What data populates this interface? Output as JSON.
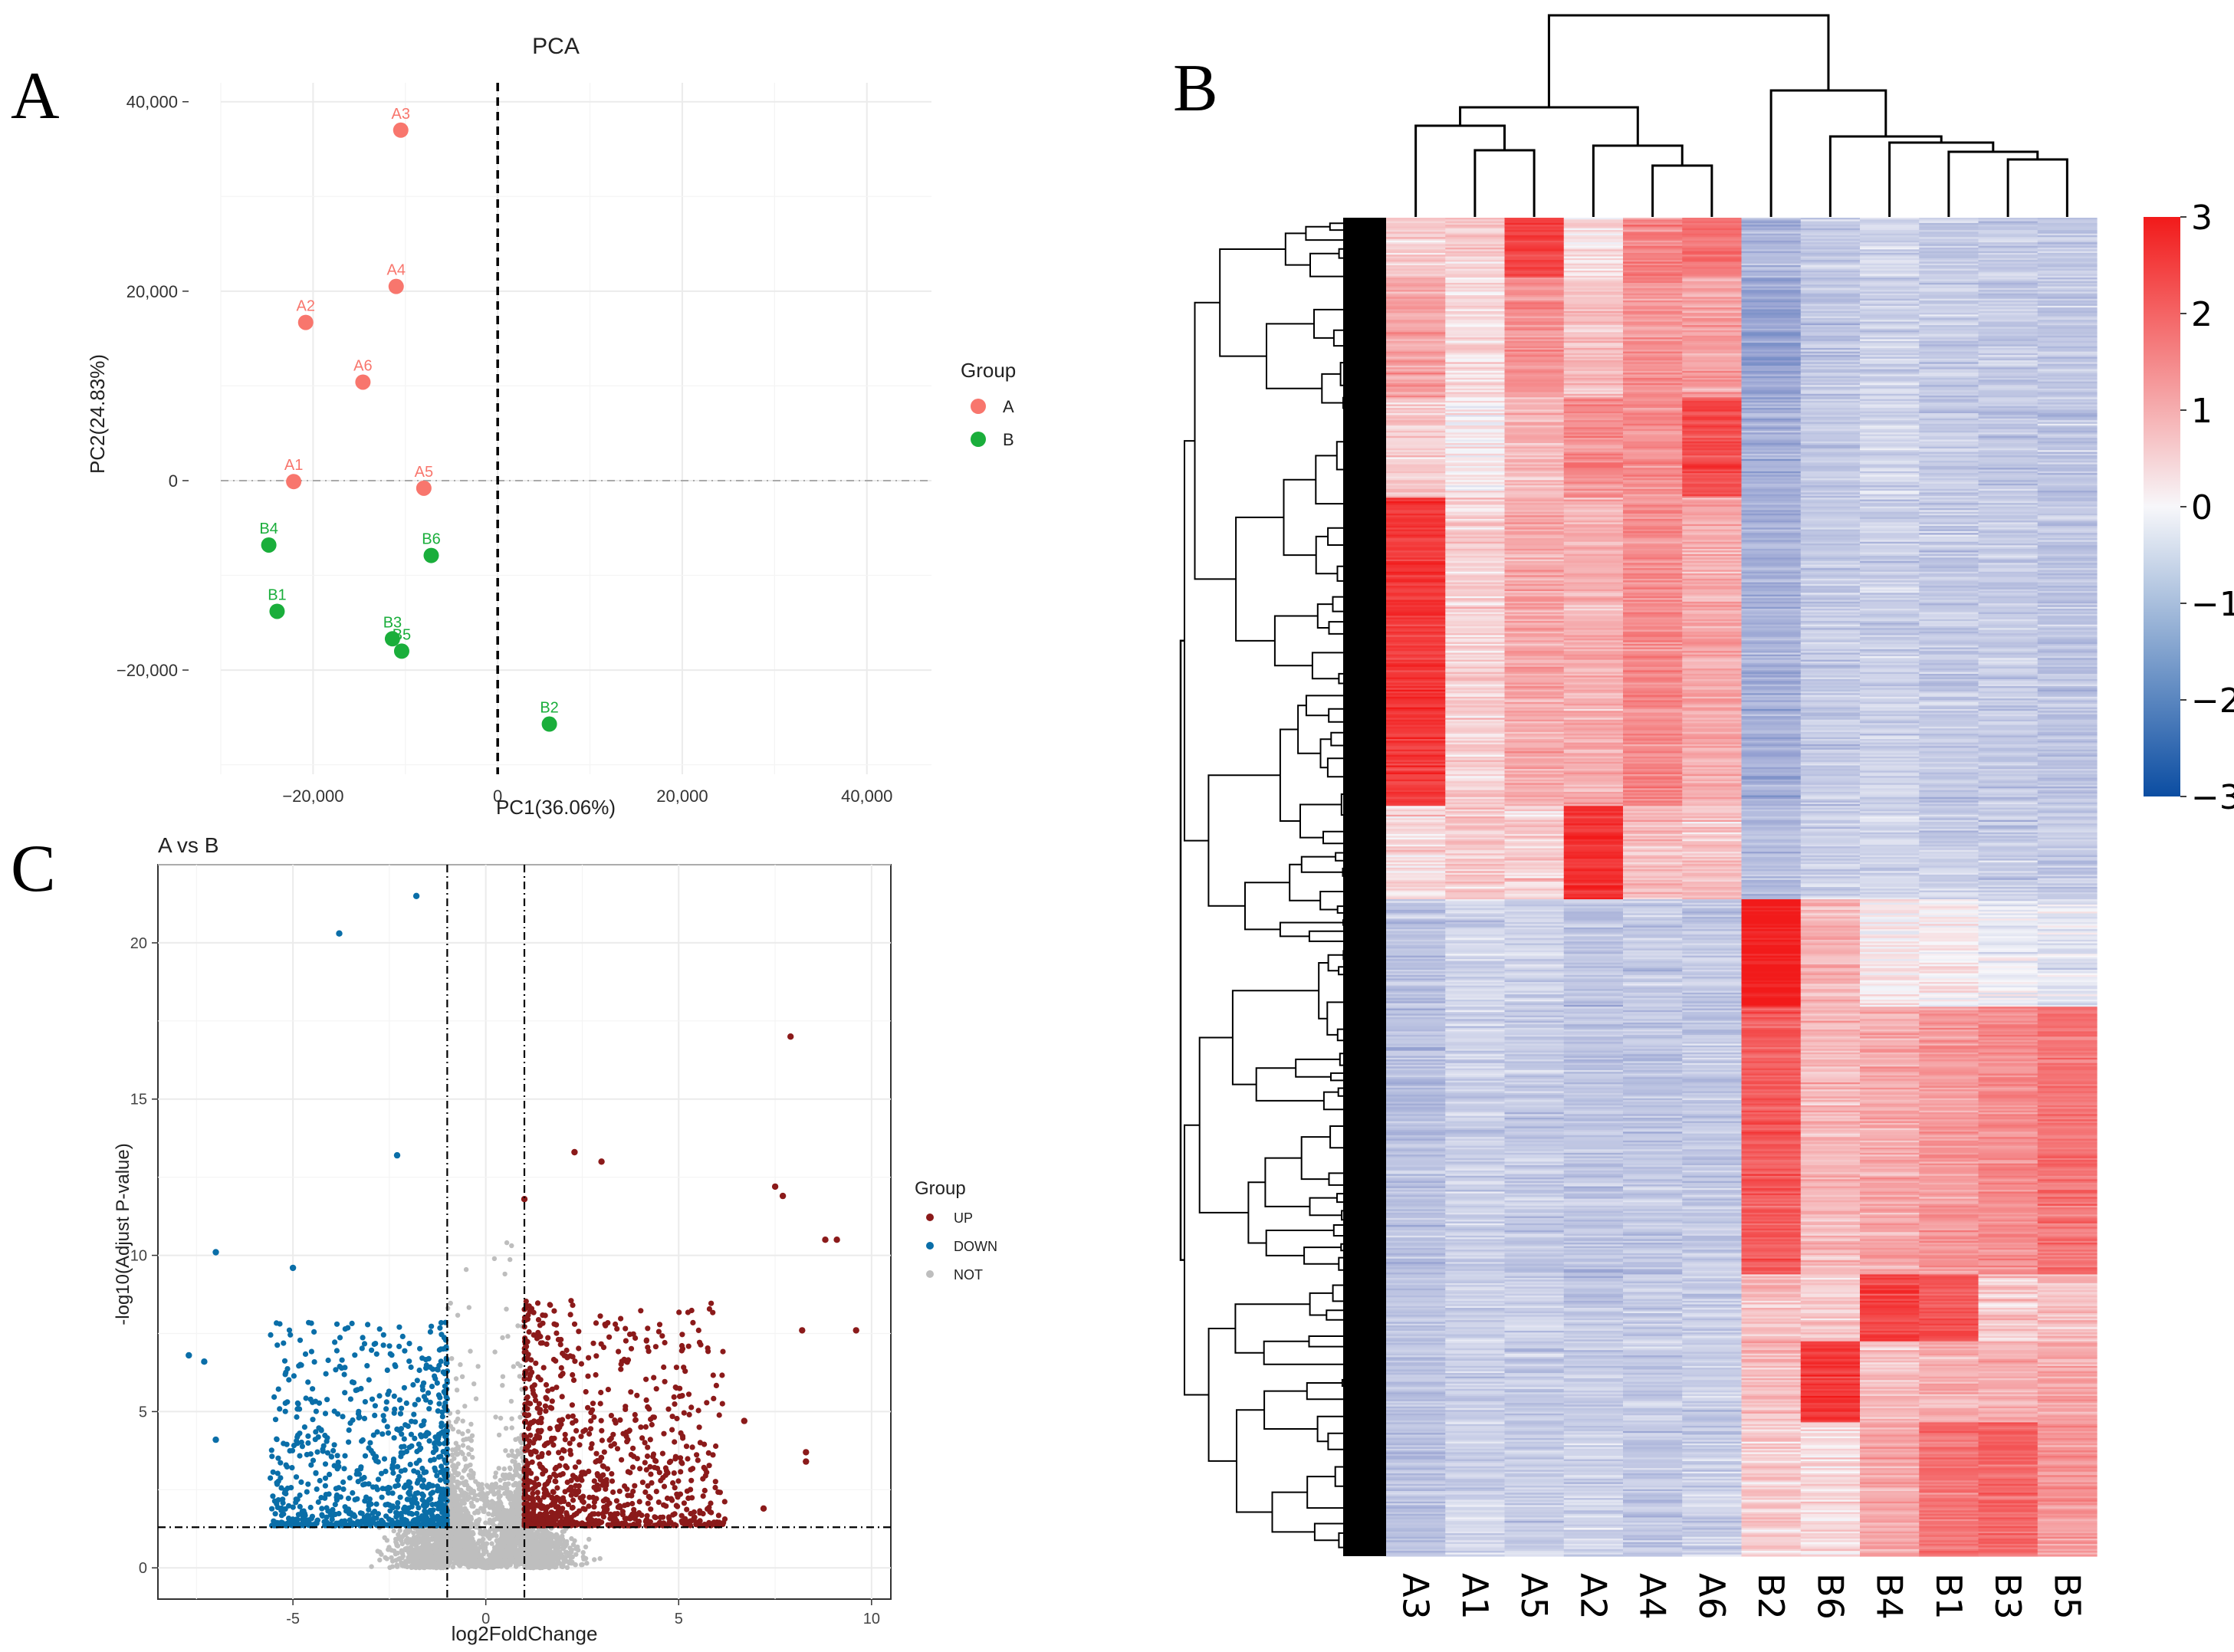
{
  "panels": {
    "a": "A",
    "b": "B",
    "c": "C"
  },
  "colors": {
    "group_a": "#F8766D",
    "group_b": "#1AAE3B",
    "up": "#8B1A1A",
    "down": "#0A6EA8",
    "not": "#BEBEBE",
    "heat_low": "#0B4DA2",
    "heat_mid": "#F7F7FA",
    "heat_high": "#F21A1A"
  },
  "chart_data": [
    {
      "id": "pca",
      "type": "scatter",
      "title": "PCA",
      "xlabel": "PC1(36.06%)",
      "ylabel": "PC2(24.83%)",
      "xlim": [
        -30000,
        47000
      ],
      "ylim": [
        -31000,
        42000
      ],
      "xticks": [
        -20000,
        0,
        20000,
        40000
      ],
      "xtick_labels": [
        "−20,000",
        "0",
        "20,000",
        "40,000"
      ],
      "yticks": [
        -20000,
        0,
        20000,
        40000
      ],
      "ytick_labels": [
        "−20,000",
        "0",
        "20,000",
        "40,000"
      ],
      "legend_title": "Group",
      "legend": [
        {
          "name": "A",
          "color": "#F8766D"
        },
        {
          "name": "B",
          "color": "#1AAE3B"
        }
      ],
      "points": [
        {
          "label": "A3",
          "group": "A",
          "x": -10500,
          "y": 37000
        },
        {
          "label": "A4",
          "group": "A",
          "x": -11000,
          "y": 20500
        },
        {
          "label": "A2",
          "group": "A",
          "x": -20800,
          "y": 16700
        },
        {
          "label": "A6",
          "group": "A",
          "x": -14600,
          "y": 10400
        },
        {
          "label": "A1",
          "group": "A",
          "x": -22100,
          "y": -100
        },
        {
          "label": "A5",
          "group": "A",
          "x": -8000,
          "y": -800
        },
        {
          "label": "B4",
          "group": "B",
          "x": -24800,
          "y": -6800
        },
        {
          "label": "B6",
          "group": "B",
          "x": -7200,
          "y": -7900
        },
        {
          "label": "B1",
          "group": "B",
          "x": -23900,
          "y": -13800
        },
        {
          "label": "B3",
          "group": "B",
          "x": -11400,
          "y": -16700
        },
        {
          "label": "B5",
          "group": "B",
          "x": -10400,
          "y": -18000
        },
        {
          "label": "B2",
          "group": "B",
          "x": 5600,
          "y": -25700
        }
      ]
    },
    {
      "id": "volcano",
      "type": "scatter",
      "title": "A vs B",
      "xlabel": "log2FoldChange",
      "ylabel": "-log10(Adjust P-value)",
      "xlim": [
        -8.5,
        10.5
      ],
      "ylim": [
        -1.0,
        22.5
      ],
      "xticks": [
        -5,
        0,
        5,
        10
      ],
      "yticks": [
        0,
        5,
        10,
        15,
        20
      ],
      "vlines": [
        -1,
        1
      ],
      "hline": 1.3,
      "legend_title": "Group",
      "legend": [
        {
          "name": "UP",
          "color": "#8B1A1A"
        },
        {
          "name": "DOWN",
          "color": "#0A6EA8"
        },
        {
          "name": "NOT",
          "color": "#BEBEBE"
        }
      ],
      "notable_points": [
        {
          "group": "DOWN",
          "x": -1.8,
          "y": 21.5
        },
        {
          "group": "DOWN",
          "x": -3.8,
          "y": 20.3
        },
        {
          "group": "DOWN",
          "x": -2.3,
          "y": 13.2
        },
        {
          "group": "DOWN",
          "x": -7.0,
          "y": 10.1
        },
        {
          "group": "DOWN",
          "x": -5.0,
          "y": 9.6
        },
        {
          "group": "DOWN",
          "x": -7.7,
          "y": 6.8
        },
        {
          "group": "DOWN",
          "x": -7.3,
          "y": 6.6
        },
        {
          "group": "DOWN",
          "x": -7.0,
          "y": 4.1
        },
        {
          "group": "UP",
          "x": 7.9,
          "y": 17.0
        },
        {
          "group": "UP",
          "x": 2.3,
          "y": 13.3
        },
        {
          "group": "UP",
          "x": 3.0,
          "y": 13.0
        },
        {
          "group": "UP",
          "x": 7.5,
          "y": 12.2
        },
        {
          "group": "UP",
          "x": 7.7,
          "y": 11.9
        },
        {
          "group": "UP",
          "x": 1.0,
          "y": 11.8
        },
        {
          "group": "UP",
          "x": 8.8,
          "y": 10.5
        },
        {
          "group": "UP",
          "x": 9.1,
          "y": 10.5
        },
        {
          "group": "UP",
          "x": 9.6,
          "y": 7.6
        },
        {
          "group": "UP",
          "x": 8.2,
          "y": 7.6
        },
        {
          "group": "UP",
          "x": 8.3,
          "y": 3.7
        },
        {
          "group": "UP",
          "x": 8.3,
          "y": 3.4
        },
        {
          "group": "UP",
          "x": 6.7,
          "y": 4.7
        },
        {
          "group": "UP",
          "x": 7.2,
          "y": 1.9
        }
      ]
    },
    {
      "id": "heatmap",
      "type": "heatmap",
      "columns": [
        "A3",
        "A1",
        "A5",
        "A2",
        "A4",
        "A6",
        "B2",
        "B6",
        "B4",
        "B1",
        "B3",
        "B5"
      ],
      "colorbar_ticks": [
        3,
        2,
        1,
        0,
        -1,
        -2,
        -3
      ],
      "colorbar_tick_labels": [
        "3",
        "2",
        "1",
        "0",
        "−1",
        "−2",
        "−3"
      ],
      "clim": [
        -3,
        3
      ],
      "column_dendrogram_order": "((A3,(A1,A5)),(A2,(A4,A6))),(B2,(B6,(B4,(B1,(B3,B5)))))"
    }
  ]
}
